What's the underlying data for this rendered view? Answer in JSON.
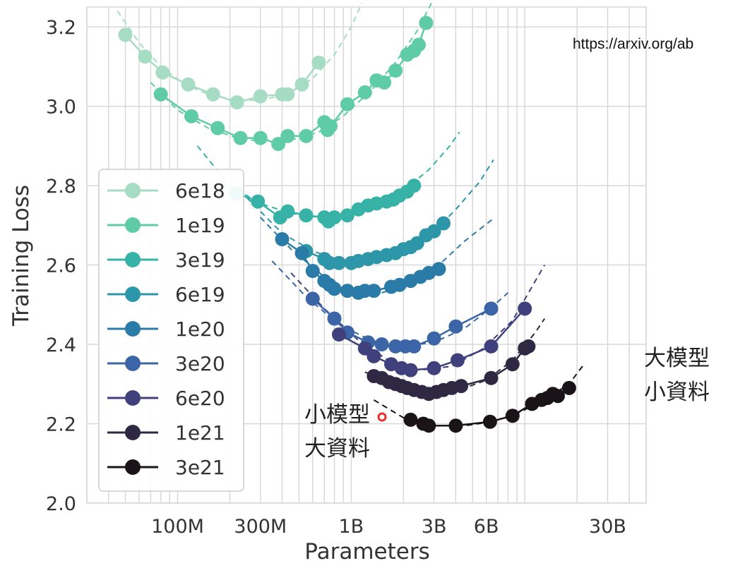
{
  "source_url": "https://arxiv.org/ab",
  "annotations": {
    "small_model_big_data": [
      "小模型",
      "大資料"
    ],
    "big_model_small_data": [
      "大模型",
      "小資料"
    ]
  },
  "chart_data": {
    "type": "line",
    "title": "",
    "xlabel": "Parameters",
    "ylabel": "Training Loss",
    "x_scale": "log",
    "xlim": [
      30000000,
      50000000000
    ],
    "ylim": [
      2.0,
      3.25
    ],
    "x_ticks": [
      {
        "value": 100000000,
        "label": "100M"
      },
      {
        "value": 300000000,
        "label": "300M"
      },
      {
        "value": 1000000000,
        "label": "1B"
      },
      {
        "value": 3000000000,
        "label": "3B"
      },
      {
        "value": 6000000000,
        "label": "6B"
      },
      {
        "value": 30000000000,
        "label": "30B"
      }
    ],
    "y_ticks": [
      {
        "value": 2.0,
        "label": "2.0"
      },
      {
        "value": 2.2,
        "label": "2.2"
      },
      {
        "value": 2.4,
        "label": "2.4"
      },
      {
        "value": 2.6,
        "label": "2.6"
      },
      {
        "value": 2.8,
        "label": "2.8"
      },
      {
        "value": 3.0,
        "label": "3.0"
      },
      {
        "value": 3.2,
        "label": "3.2"
      }
    ],
    "grid": true,
    "legend_position": "left",
    "series": [
      {
        "name": "6e18",
        "color": "#a6dcc4",
        "points": [
          [
            50000000,
            3.18
          ],
          [
            65000000,
            3.125
          ],
          [
            82000000,
            3.085
          ],
          [
            115000000,
            3.055
          ],
          [
            160000000,
            3.03
          ],
          [
            220000000,
            3.01
          ],
          [
            300000000,
            3.025
          ],
          [
            400000000,
            3.03
          ],
          [
            430000000,
            3.03
          ],
          [
            520000000,
            3.055
          ],
          [
            650000000,
            3.11
          ]
        ],
        "fit": [
          [
            45000000,
            3.24
          ],
          [
            60000000,
            3.16
          ],
          [
            80000000,
            3.1
          ],
          [
            110000000,
            3.055
          ],
          [
            150000000,
            3.03
          ],
          [
            220000000,
            3.015
          ],
          [
            300000000,
            3.015
          ],
          [
            420000000,
            3.03
          ],
          [
            600000000,
            3.07
          ],
          [
            800000000,
            3.13
          ],
          [
            1000000000,
            3.2
          ],
          [
            1150000000,
            3.26
          ]
        ]
      },
      {
        "name": "1e19",
        "color": "#5fcba7",
        "points": [
          [
            80000000,
            3.03
          ],
          [
            120000000,
            2.975
          ],
          [
            170000000,
            2.945
          ],
          [
            230000000,
            2.92
          ],
          [
            300000000,
            2.92
          ],
          [
            380000000,
            2.905
          ],
          [
            430000000,
            2.925
          ],
          [
            550000000,
            2.925
          ],
          [
            700000000,
            2.96
          ],
          [
            730000000,
            2.94
          ],
          [
            760000000,
            2.95
          ],
          [
            950000000,
            3.005
          ],
          [
            1200000000,
            3.035
          ],
          [
            1400000000,
            3.065
          ],
          [
            1550000000,
            3.06
          ],
          [
            1800000000,
            3.09
          ],
          [
            2100000000,
            3.13
          ],
          [
            2300000000,
            3.14
          ],
          [
            2450000000,
            3.155
          ],
          [
            2700000000,
            3.21
          ]
        ],
        "fit": [
          [
            70000000,
            3.06
          ],
          [
            100000000,
            2.99
          ],
          [
            150000000,
            2.945
          ],
          [
            220000000,
            2.92
          ],
          [
            320000000,
            2.91
          ],
          [
            450000000,
            2.915
          ],
          [
            650000000,
            2.935
          ],
          [
            900000000,
            2.975
          ],
          [
            1300000000,
            3.04
          ],
          [
            1800000000,
            3.11
          ],
          [
            2400000000,
            3.19
          ],
          [
            2900000000,
            3.26
          ]
        ]
      },
      {
        "name": "3e19",
        "color": "#36b3a6",
        "points": [
          [
            220000000,
            2.78
          ],
          [
            290000000,
            2.76
          ],
          [
            390000000,
            2.72
          ],
          [
            430000000,
            2.735
          ],
          [
            550000000,
            2.725
          ],
          [
            700000000,
            2.72
          ],
          [
            740000000,
            2.71
          ],
          [
            800000000,
            2.72
          ],
          [
            950000000,
            2.725
          ],
          [
            1100000000,
            2.74
          ],
          [
            1250000000,
            2.75
          ],
          [
            1400000000,
            2.755
          ],
          [
            1600000000,
            2.76
          ],
          [
            1750000000,
            2.765
          ],
          [
            1900000000,
            2.775
          ],
          [
            2100000000,
            2.785
          ],
          [
            2300000000,
            2.8
          ]
        ],
        "fit": [
          [
            130000000,
            2.9
          ],
          [
            200000000,
            2.8
          ],
          [
            300000000,
            2.755
          ],
          [
            450000000,
            2.73
          ],
          [
            650000000,
            2.72
          ],
          [
            900000000,
            2.725
          ],
          [
            1300000000,
            2.745
          ],
          [
            1900000000,
            2.78
          ],
          [
            2800000000,
            2.84
          ],
          [
            3700000000,
            2.9
          ],
          [
            4200000000,
            2.935
          ]
        ]
      },
      {
        "name": "6e19",
        "color": "#2d96a8",
        "points": [
          [
            550000000,
            2.635
          ],
          [
            700000000,
            2.615
          ],
          [
            750000000,
            2.605
          ],
          [
            850000000,
            2.605
          ],
          [
            1000000000,
            2.605
          ],
          [
            1100000000,
            2.61
          ],
          [
            1250000000,
            2.615
          ],
          [
            1400000000,
            2.62
          ],
          [
            1600000000,
            2.625
          ],
          [
            1800000000,
            2.63
          ],
          [
            2000000000,
            2.64
          ],
          [
            2200000000,
            2.645
          ],
          [
            2400000000,
            2.655
          ],
          [
            2700000000,
            2.675
          ],
          [
            3000000000,
            2.685
          ],
          [
            3400000000,
            2.705
          ]
        ],
        "fit": [
          [
            250000000,
            2.77
          ],
          [
            400000000,
            2.68
          ],
          [
            600000000,
            2.635
          ],
          [
            900000000,
            2.61
          ],
          [
            1300000000,
            2.61
          ],
          [
            1900000000,
            2.63
          ],
          [
            2800000000,
            2.67
          ],
          [
            4000000000,
            2.74
          ],
          [
            5500000000,
            2.81
          ],
          [
            6600000000,
            2.865
          ]
        ]
      },
      {
        "name": "1e20",
        "color": "#2b7ba8",
        "points": [
          [
            400000000,
            2.665
          ],
          [
            520000000,
            2.63
          ],
          [
            600000000,
            2.585
          ],
          [
            700000000,
            2.56
          ],
          [
            750000000,
            2.55
          ],
          [
            800000000,
            2.54
          ],
          [
            950000000,
            2.535
          ],
          [
            1100000000,
            2.53
          ],
          [
            1200000000,
            2.535
          ],
          [
            1350000000,
            2.535
          ],
          [
            1700000000,
            2.545
          ],
          [
            1900000000,
            2.55
          ],
          [
            2200000000,
            2.56
          ],
          [
            2500000000,
            2.57
          ],
          [
            2800000000,
            2.58
          ],
          [
            3200000000,
            2.59
          ]
        ],
        "fit": [
          [
            300000000,
            2.72
          ],
          [
            450000000,
            2.64
          ],
          [
            700000000,
            2.57
          ],
          [
            1000000000,
            2.535
          ],
          [
            1500000000,
            2.53
          ],
          [
            2200000000,
            2.55
          ],
          [
            3200000000,
            2.6
          ],
          [
            4500000000,
            2.66
          ],
          [
            6500000000,
            2.715
          ]
        ]
      },
      {
        "name": "3e20",
        "color": "#3b65a6",
        "points": [
          [
            600000000,
            2.515
          ],
          [
            800000000,
            2.465
          ],
          [
            950000000,
            2.43
          ],
          [
            1250000000,
            2.405
          ],
          [
            1500000000,
            2.4
          ],
          [
            1800000000,
            2.395
          ],
          [
            2050000000,
            2.395
          ],
          [
            2300000000,
            2.395
          ],
          [
            3000000000,
            2.415
          ],
          [
            4000000000,
            2.445
          ],
          [
            6400000000,
            2.49
          ]
        ],
        "fit": [
          [
            350000000,
            2.61
          ],
          [
            550000000,
            2.52
          ],
          [
            850000000,
            2.45
          ],
          [
            1300000000,
            2.41
          ],
          [
            2000000000,
            2.395
          ],
          [
            3000000000,
            2.405
          ],
          [
            4500000000,
            2.44
          ],
          [
            6500000000,
            2.495
          ],
          [
            8000000000,
            2.53
          ]
        ]
      },
      {
        "name": "6e20",
        "color": "#40407d",
        "points": [
          [
            850000000,
            2.425
          ],
          [
            1200000000,
            2.39
          ],
          [
            1350000000,
            2.37
          ],
          [
            1700000000,
            2.35
          ],
          [
            1950000000,
            2.34
          ],
          [
            2200000000,
            2.335
          ],
          [
            3000000000,
            2.34
          ],
          [
            4100000000,
            2.36
          ],
          [
            6400000000,
            2.395
          ],
          [
            10000000000,
            2.49
          ]
        ],
        "fit": [
          [
            450000000,
            2.58
          ],
          [
            700000000,
            2.49
          ],
          [
            1100000000,
            2.41
          ],
          [
            1700000000,
            2.355
          ],
          [
            2500000000,
            2.335
          ],
          [
            3800000000,
            2.345
          ],
          [
            5800000000,
            2.39
          ],
          [
            8500000000,
            2.46
          ],
          [
            11500000000,
            2.56
          ],
          [
            13000000000,
            2.6
          ]
        ]
      },
      {
        "name": "1e21",
        "color": "#2f2843",
        "points": [
          [
            1350000000,
            2.32
          ],
          [
            1500000000,
            2.315
          ],
          [
            1650000000,
            2.305
          ],
          [
            1800000000,
            2.3
          ],
          [
            1950000000,
            2.295
          ],
          [
            2100000000,
            2.29
          ],
          [
            2300000000,
            2.285
          ],
          [
            2550000000,
            2.28
          ],
          [
            2800000000,
            2.275
          ],
          [
            3100000000,
            2.28
          ],
          [
            3400000000,
            2.285
          ],
          [
            3800000000,
            2.29
          ],
          [
            4300000000,
            2.295
          ],
          [
            6400000000,
            2.315
          ],
          [
            8500000000,
            2.35
          ],
          [
            10000000000,
            2.39
          ],
          [
            10500000000,
            2.395
          ]
        ],
        "fit": [
          [
            1200000000,
            2.33
          ],
          [
            1600000000,
            2.31
          ],
          [
            2200000000,
            2.29
          ],
          [
            3000000000,
            2.28
          ],
          [
            4200000000,
            2.285
          ],
          [
            6000000000,
            2.31
          ],
          [
            8500000000,
            2.36
          ],
          [
            11500000000,
            2.43
          ],
          [
            13000000000,
            2.465
          ]
        ]
      },
      {
        "name": "3e21",
        "color": "#1a1418",
        "points": [
          [
            2200000000,
            2.21
          ],
          [
            2600000000,
            2.2
          ],
          [
            2800000000,
            2.195
          ],
          [
            4000000000,
            2.195
          ],
          [
            6300000000,
            2.205
          ],
          [
            8500000000,
            2.22
          ],
          [
            11000000000,
            2.25
          ],
          [
            12500000000,
            2.26
          ],
          [
            13500000000,
            2.265
          ],
          [
            14500000000,
            2.275
          ],
          [
            15500000000,
            2.27
          ],
          [
            18000000000,
            2.29
          ]
        ],
        "fit": [
          [
            1350000000,
            2.26
          ],
          [
            2000000000,
            2.215
          ],
          [
            3000000000,
            2.195
          ],
          [
            4500000000,
            2.195
          ],
          [
            6500000000,
            2.205
          ],
          [
            9500000000,
            2.23
          ],
          [
            13500000000,
            2.265
          ],
          [
            18000000000,
            2.3
          ],
          [
            21500000000,
            2.345
          ]
        ]
      }
    ]
  }
}
